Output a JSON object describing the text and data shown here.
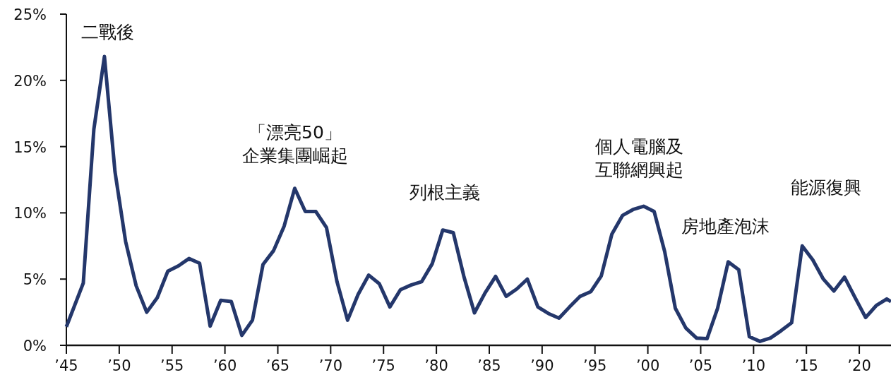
{
  "chart_data": {
    "type": "line",
    "x": [
      1945,
      1946.6,
      1947.6,
      1948.6,
      1949.6,
      1950.6,
      1951.6,
      1952.6,
      1953.6,
      1954.6,
      1955.6,
      1956.6,
      1957.6,
      1958.6,
      1959.6,
      1960.6,
      1961.6,
      1962.6,
      1963.6,
      1964.6,
      1965.6,
      1966.6,
      1967.6,
      1968.6,
      1969.6,
      1970.6,
      1971.6,
      1972.6,
      1973.6,
      1974.6,
      1975.6,
      1976.6,
      1977.6,
      1978.6,
      1979.6,
      1980.6,
      1981.6,
      1982.6,
      1983.6,
      1984.6,
      1985.6,
      1986.6,
      1987.6,
      1988.6,
      1989.6,
      1990.6,
      1991.6,
      1992.6,
      1993.6,
      1994.6,
      1995.6,
      1996.6,
      1997.6,
      1998.6,
      1999.6,
      2000.6,
      2001.6,
      2002.6,
      2003.6,
      2004.6,
      2005.6,
      2006.6,
      2007.6,
      2008.6,
      2009.6,
      2010.6,
      2011.6,
      2012.6,
      2013.6,
      2014.6,
      2015.6,
      2016.6,
      2017.6,
      2018.6,
      2019.6,
      2020.6,
      2021.6,
      2022.6,
      2023
    ],
    "series": [
      {
        "color": "#24376b",
        "values": [
          1.4,
          4.7,
          16.3,
          21.8,
          13.1,
          7.85,
          4.5,
          2.5,
          3.6,
          5.6,
          6.0,
          6.55,
          6.2,
          1.45,
          3.4,
          3.3,
          0.75,
          1.9,
          6.1,
          7.15,
          9.0,
          11.85,
          10.1,
          10.1,
          8.9,
          4.8,
          1.9,
          3.85,
          5.3,
          4.65,
          2.9,
          4.2,
          4.55,
          4.8,
          6.15,
          8.7,
          8.5,
          5.2,
          2.45,
          3.95,
          5.2,
          3.7,
          4.25,
          5.0,
          2.9,
          2.4,
          2.05,
          2.9,
          3.7,
          4.05,
          5.25,
          8.4,
          9.8,
          10.25,
          10.5,
          10.1,
          7.05,
          2.8,
          1.3,
          0.55,
          0.5,
          2.8,
          6.3,
          5.7,
          0.65,
          0.3,
          0.55,
          1.1,
          1.7,
          7.5,
          6.45,
          5.0,
          4.1,
          5.15,
          3.6,
          2.1,
          3.0,
          3.5,
          3.3
        ]
      }
    ],
    "xlim": [
      1945,
      2023
    ],
    "xticks": [
      {
        "value": 1945,
        "label": "’45"
      },
      {
        "value": 1950,
        "label": "’50"
      },
      {
        "value": 1955,
        "label": "’55"
      },
      {
        "value": 1960,
        "label": "’60"
      },
      {
        "value": 1965,
        "label": "’65"
      },
      {
        "value": 1970,
        "label": "’70"
      },
      {
        "value": 1975,
        "label": "’75"
      },
      {
        "value": 1980,
        "label": "’80"
      },
      {
        "value": 1985,
        "label": "’85"
      },
      {
        "value": 1990,
        "label": "’90"
      },
      {
        "value": 1995,
        "label": "’95"
      },
      {
        "value": 2000,
        "label": "’00"
      },
      {
        "value": 2005,
        "label": "’05"
      },
      {
        "value": 2010,
        "label": "’10"
      },
      {
        "value": 2015,
        "label": "’15"
      },
      {
        "value": 2020,
        "label": "’20"
      }
    ],
    "ylim": [
      0,
      25
    ],
    "yticks": [
      {
        "value": 0,
        "label": "0%"
      },
      {
        "value": 5,
        "label": "5%"
      },
      {
        "value": 10,
        "label": "10%"
      },
      {
        "value": 15,
        "label": "15%"
      },
      {
        "value": 20,
        "label": "20%"
      },
      {
        "value": 25,
        "label": "25%"
      }
    ],
    "annotations": [
      "二戰後",
      "「漂亮50」企業集團崛起",
      "列根主義",
      "個人電腦及互聯網興起",
      "房地產泡沫",
      "能源復興"
    ],
    "grid": false,
    "marker": "none",
    "line_style": "solid"
  }
}
